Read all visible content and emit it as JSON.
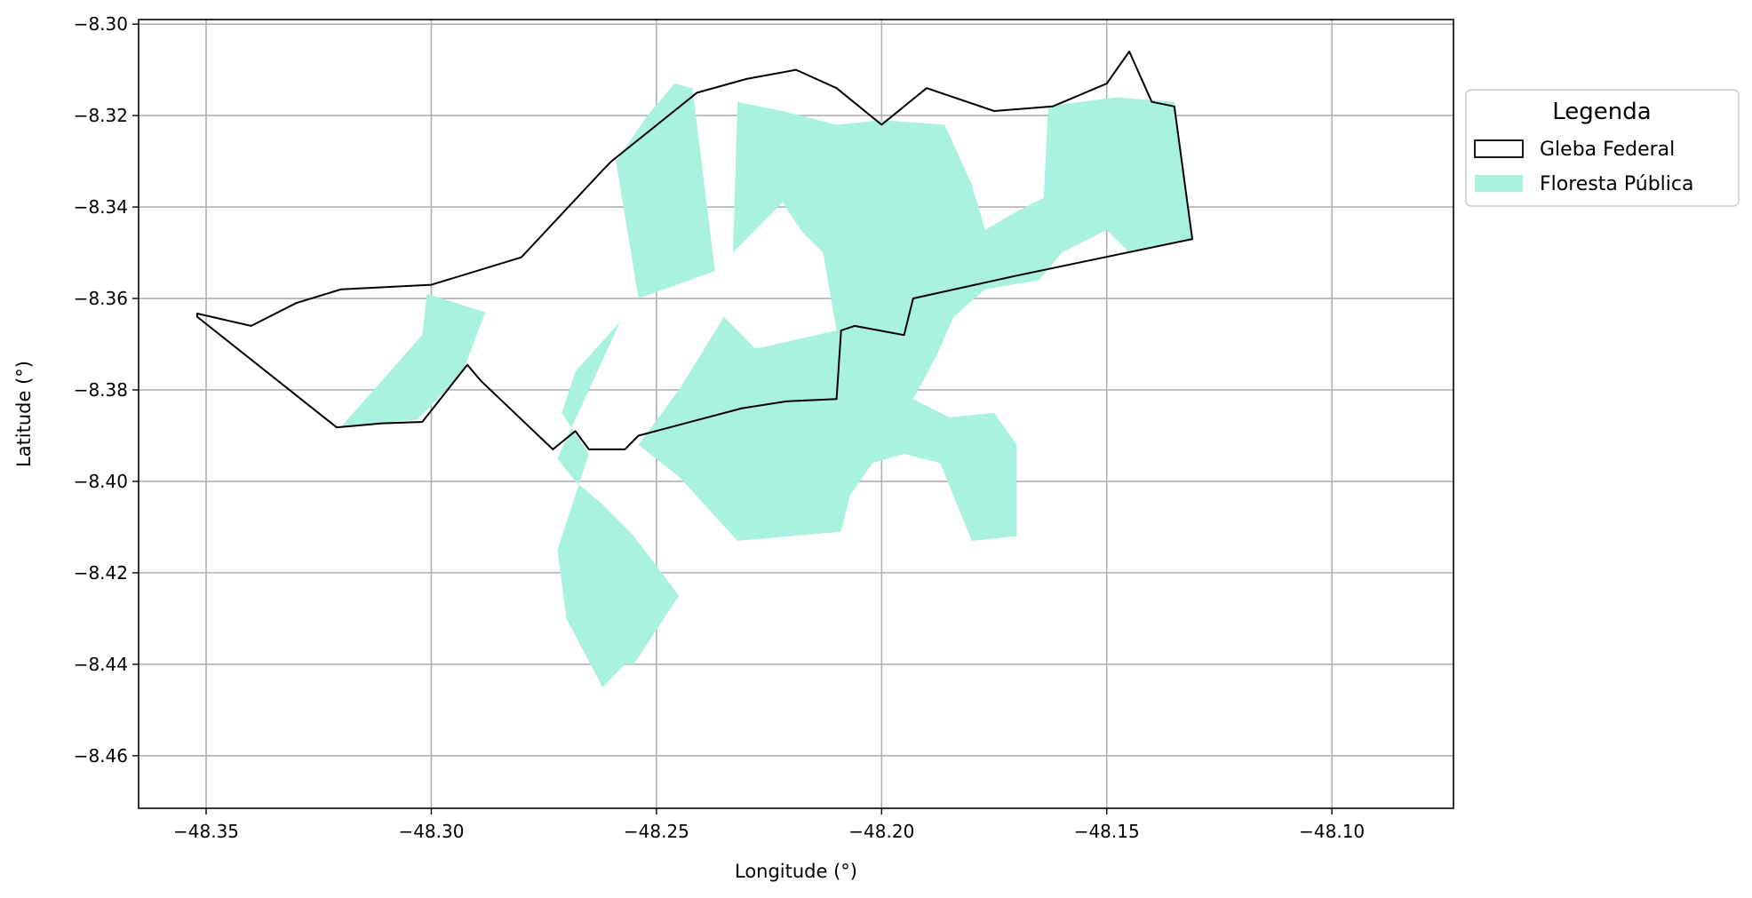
{
  "chart_data": {
    "type": "map",
    "title": "",
    "xlabel": "Longitude (°)",
    "ylabel": "Latitude (°)",
    "xlim": [
      -48.365,
      -48.073
    ],
    "ylim": [
      -8.4715,
      -8.299
    ],
    "grid": true,
    "xticks": [
      -48.35,
      -48.3,
      -48.25,
      -48.2,
      -48.15,
      -48.1
    ],
    "yticks": [
      -8.3,
      -8.32,
      -8.34,
      -8.36,
      -8.38,
      -8.4,
      -8.42,
      -8.44,
      -8.46
    ],
    "xtick_labels": [
      "−48.35",
      "−48.30",
      "−48.25",
      "−48.20",
      "−48.15",
      "−48.10"
    ],
    "ytick_labels": [
      "−8.30",
      "−8.32",
      "−8.34",
      "−8.36",
      "−8.38",
      "−8.40",
      "−8.42",
      "−8.44",
      "−8.46"
    ],
    "legend": {
      "title": "Legenda",
      "placement": "right-outside-top",
      "entries": [
        {
          "label": "Gleba Federal",
          "style": "outline",
          "edge_color": "#000000",
          "face_color": "none"
        },
        {
          "label": "Floresta Pública",
          "style": "fill",
          "face_color": "#a8f2df"
        }
      ]
    },
    "colors": {
      "floresta": "#a8f2df",
      "gleba_edge": "#000000",
      "grid": "#b0b0b0"
    },
    "gleba_federal": [
      [
        -48.352,
        -8.3633
      ],
      [
        -48.34,
        -8.366
      ],
      [
        -48.33,
        -8.361
      ],
      [
        -48.32,
        -8.358
      ],
      [
        -48.3,
        -8.357
      ],
      [
        -48.28,
        -8.351
      ],
      [
        -48.262,
        -8.332
      ],
      [
        -48.26,
        -8.33
      ],
      [
        -48.241,
        -8.315
      ],
      [
        -48.23,
        -8.312
      ],
      [
        -48.219,
        -8.31
      ],
      [
        -48.21,
        -8.314
      ],
      [
        -48.2,
        -8.322
      ],
      [
        -48.19,
        -8.314
      ],
      [
        -48.175,
        -8.319
      ],
      [
        -48.162,
        -8.318
      ],
      [
        -48.15,
        -8.313
      ],
      [
        -48.145,
        -8.306
      ],
      [
        -48.14,
        -8.317
      ],
      [
        -48.135,
        -8.318
      ],
      [
        -48.131,
        -8.347
      ],
      [
        -48.17,
        -8.355
      ],
      [
        -48.193,
        -8.36
      ],
      [
        -48.195,
        -8.368
      ],
      [
        -48.206,
        -8.366
      ],
      [
        -48.209,
        -8.367
      ],
      [
        -48.21,
        -8.382
      ],
      [
        -48.221,
        -8.3825
      ],
      [
        -48.231,
        -8.384
      ],
      [
        -48.254,
        -8.39
      ],
      [
        -48.257,
        -8.393
      ],
      [
        -48.265,
        -8.393
      ],
      [
        -48.268,
        -8.389
      ],
      [
        -48.273,
        -8.393
      ],
      [
        -48.289,
        -8.378
      ],
      [
        -48.292,
        -8.3745
      ],
      [
        -48.302,
        -8.387
      ],
      [
        -48.311,
        -8.3873
      ],
      [
        -48.321,
        -8.3882
      ],
      [
        -48.352,
        -8.364
      ]
    ],
    "floresta_publica": [
      [
        [
          -48.32,
          -8.388
        ],
        [
          -48.302,
          -8.368
        ],
        [
          -48.301,
          -8.359
        ],
        [
          -48.288,
          -8.363
        ],
        [
          -48.293,
          -8.376
        ],
        [
          -48.303,
          -8.3865
        ]
      ],
      [
        [
          -48.258,
          -8.365
        ],
        [
          -48.268,
          -8.376
        ],
        [
          -48.271,
          -8.385
        ],
        [
          -48.265,
          -8.394
        ],
        [
          -48.272,
          -8.415
        ],
        [
          -48.27,
          -8.43
        ],
        [
          -48.262,
          -8.445
        ],
        [
          -48.257,
          -8.44
        ],
        [
          -48.255,
          -8.44
        ],
        [
          -48.245,
          -8.425
        ],
        [
          -48.255,
          -8.412
        ],
        [
          -48.262,
          -8.405
        ],
        [
          -48.268,
          -8.4
        ],
        [
          -48.272,
          -8.395
        ]
      ],
      [
        [
          -48.259,
          -8.33
        ],
        [
          -48.252,
          -8.32
        ],
        [
          -48.246,
          -8.313
        ],
        [
          -48.242,
          -8.314
        ],
        [
          -48.237,
          -8.354
        ],
        [
          -48.254,
          -8.36
        ]
      ],
      [
        [
          -48.254,
          -8.392
        ],
        [
          -48.245,
          -8.38
        ],
        [
          -48.235,
          -8.364
        ],
        [
          -48.228,
          -8.371
        ],
        [
          -48.21,
          -8.367
        ],
        [
          -48.213,
          -8.35
        ],
        [
          -48.218,
          -8.345
        ],
        [
          -48.222,
          -8.339
        ],
        [
          -48.233,
          -8.35
        ],
        [
          -48.232,
          -8.317
        ],
        [
          -48.222,
          -8.319
        ],
        [
          -48.21,
          -8.322
        ],
        [
          -48.2,
          -8.321
        ],
        [
          -48.186,
          -8.322
        ],
        [
          -48.18,
          -8.335
        ],
        [
          -48.177,
          -8.345
        ],
        [
          -48.17,
          -8.341
        ],
        [
          -48.164,
          -8.338
        ],
        [
          -48.163,
          -8.318
        ],
        [
          -48.148,
          -8.316
        ],
        [
          -48.135,
          -8.317
        ],
        [
          -48.131,
          -8.347
        ],
        [
          -48.145,
          -8.35
        ],
        [
          -48.15,
          -8.345
        ],
        [
          -48.16,
          -8.35
        ],
        [
          -48.165,
          -8.356
        ],
        [
          -48.177,
          -8.358
        ],
        [
          -48.184,
          -8.364
        ],
        [
          -48.188,
          -8.373
        ],
        [
          -48.193,
          -8.382
        ],
        [
          -48.185,
          -8.386
        ],
        [
          -48.175,
          -8.385
        ],
        [
          -48.17,
          -8.392
        ],
        [
          -48.17,
          -8.412
        ],
        [
          -48.18,
          -8.413
        ],
        [
          -48.187,
          -8.396
        ],
        [
          -48.195,
          -8.394
        ],
        [
          -48.202,
          -8.396
        ],
        [
          -48.207,
          -8.403
        ],
        [
          -48.209,
          -8.411
        ],
        [
          -48.232,
          -8.413
        ],
        [
          -48.245,
          -8.399
        ]
      ]
    ]
  }
}
